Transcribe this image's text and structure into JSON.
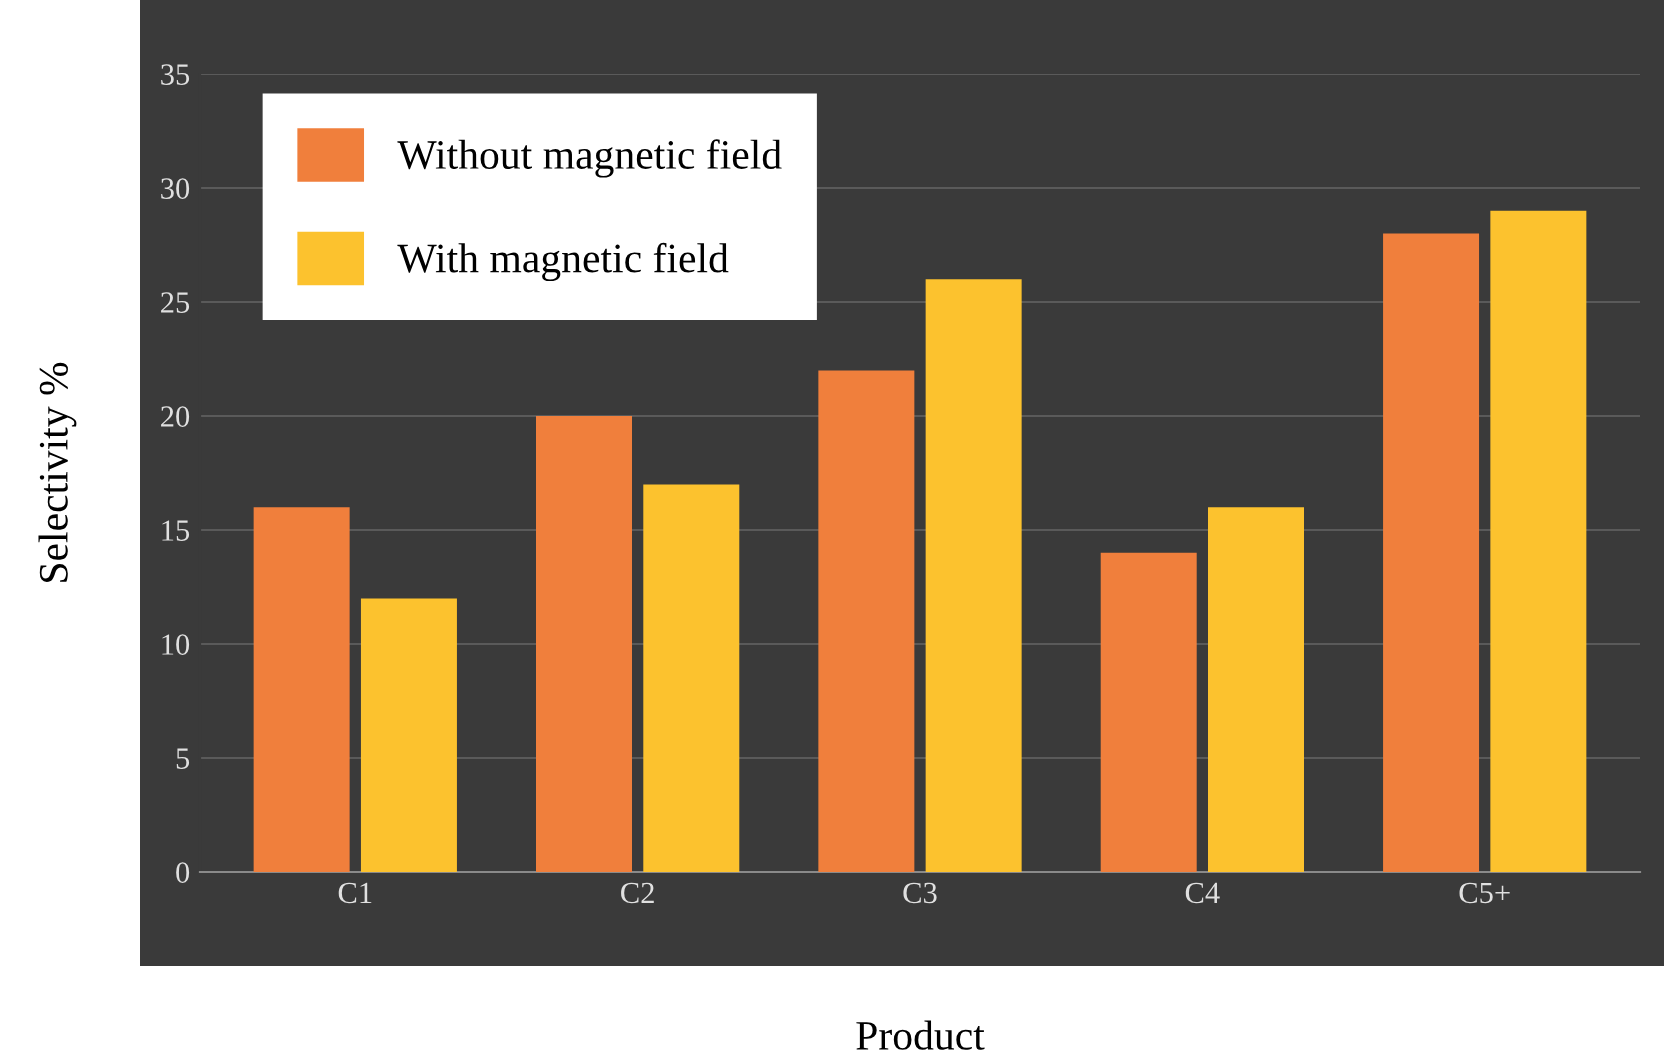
{
  "chart_data": {
    "type": "bar",
    "xlabel": "Product",
    "ylabel": "Selectivity %",
    "categories": [
      "C1",
      "C2",
      "C3",
      "C4",
      "C5+"
    ],
    "series": [
      {
        "name": "Without magnetic field",
        "color": "#f07f3c",
        "values": [
          16,
          20,
          22,
          14,
          28
        ]
      },
      {
        "name": "With magnetic field",
        "color": "#fcc22e",
        "values": [
          12,
          17,
          26,
          16,
          29
        ]
      }
    ],
    "ylim": [
      0,
      35
    ],
    "yticks": [
      0,
      5,
      10,
      15,
      20,
      25,
      30,
      35
    ],
    "grid": "y",
    "legend": "top left"
  }
}
